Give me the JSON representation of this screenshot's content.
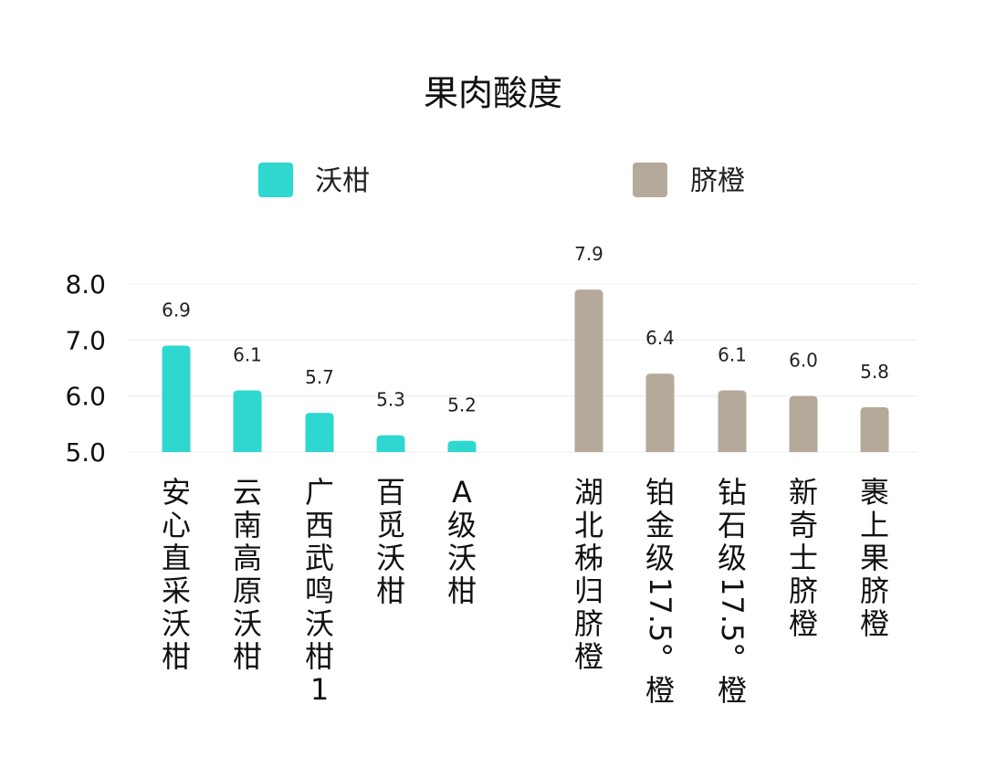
{
  "chart_data": {
    "type": "bar",
    "title": "果肉酸度",
    "ylim": [
      5.0,
      8.0
    ],
    "yticks": [
      "5.0",
      "6.0",
      "7.0",
      "8.0"
    ],
    "grid": true,
    "legend_placement": "top",
    "series": [
      {
        "name": "沃柑",
        "color": "#2ED7CF",
        "categories": [
          "安心直采沃柑",
          "云南高原沃柑",
          "广西武鸣沃柑1",
          "百觅沃柑",
          "A级沃柑"
        ],
        "values": [
          6.9,
          6.1,
          5.7,
          5.3,
          5.2
        ],
        "value_labels": [
          "6.9",
          "6.1",
          "5.7",
          "5.3",
          "5.2"
        ]
      },
      {
        "name": "脐橙",
        "color": "#B5A99A",
        "categories": [
          "湖北秭归脐橙",
          "铂金级17.5°橙",
          "钻石级17.5°橙",
          "新奇士脐橙",
          "裹上果脐橙"
        ],
        "values": [
          7.9,
          6.4,
          6.1,
          6.0,
          5.8
        ],
        "value_labels": [
          "7.9",
          "6.4",
          "6.1",
          "6.0",
          "5.8"
        ]
      }
    ]
  }
}
